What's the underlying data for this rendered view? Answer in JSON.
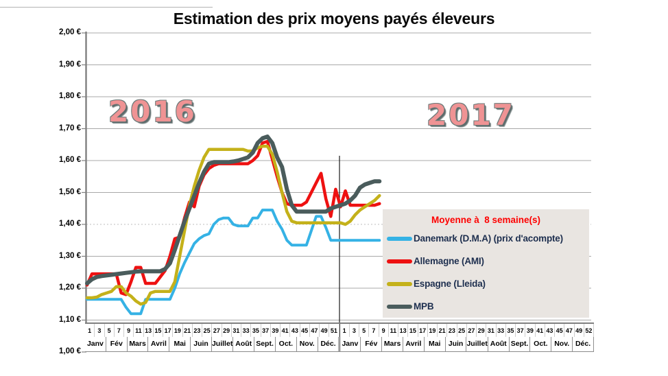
{
  "chart_data": {
    "type": "line",
    "title": "Estimation des prix moyens payés éleveurs",
    "year_labels": [
      "2016",
      "2017"
    ],
    "ylabel": "",
    "xlabel": "",
    "ylim": [
      1.0,
      2.0
    ],
    "grid": true,
    "legend_position": "inside-right",
    "y_axis": {
      "tick_labels": [
        "2,00 €",
        "1,90 €",
        "1,80 €",
        "1,70 €",
        "1,60 €",
        "1,50 €",
        "1,40 €",
        "1,30 €",
        "1,20 €",
        "1,10 €",
        "1,00 €"
      ],
      "dashed_gridline_value": 1.4
    },
    "x_axis": {
      "weeks_per_year": 52,
      "week_tick_labels_2016": [
        "1",
        "3",
        "5",
        "7",
        "9",
        "11",
        "13",
        "15",
        "17",
        "19",
        "21",
        "23",
        "25",
        "27",
        "29",
        "31",
        "33",
        "35",
        "37",
        "39",
        "41",
        "43",
        "45",
        "47",
        "49",
        "51"
      ],
      "week_tick_labels_2017": [
        "1",
        "3",
        "5",
        "7",
        "9",
        "11",
        "13",
        "15",
        "17",
        "19",
        "21",
        "23",
        "25",
        "27",
        "29",
        "31",
        "33",
        "35",
        "37",
        "39",
        "41",
        "43",
        "45",
        "47",
        "49",
        "52"
      ],
      "months": [
        "Janv",
        "Fév",
        "Mars",
        "Avril",
        "Mai",
        "Juin",
        "Juillet",
        "Août",
        "Sept.",
        "Oct.",
        "Nov.",
        "Déc."
      ]
    },
    "legend": {
      "title": "Moyenne à  8 semaine(s)",
      "title_color": "#FE0000"
    },
    "year_separator": {
      "between": [
        "2016",
        "2017"
      ],
      "color": "#1a1a1a"
    },
    "series": [
      {
        "id": "danemark",
        "name": "Danemark (D.M.A) (prix d'acompte)",
        "color": "#35B2E5",
        "width": 4,
        "values_2016": [
          1.165,
          1.165,
          1.165,
          1.165,
          1.165,
          1.165,
          1.165,
          1.165,
          1.14,
          1.12,
          1.12,
          1.12,
          1.165,
          1.165,
          1.165,
          1.165,
          1.165,
          1.165,
          1.2,
          1.245,
          1.28,
          1.31,
          1.34,
          1.355,
          1.365,
          1.37,
          1.4,
          1.415,
          1.42,
          1.42,
          1.4,
          1.395,
          1.395,
          1.395,
          1.42,
          1.42,
          1.445,
          1.445,
          1.445,
          1.41,
          1.385,
          1.35,
          1.335,
          1.335,
          1.335,
          1.335,
          1.38,
          1.425,
          1.425,
          1.39,
          1.35,
          1.35
        ],
        "values_2017": [
          1.35,
          1.35,
          1.35,
          1.35,
          1.35,
          1.35,
          1.35,
          1.35,
          1.35
        ]
      },
      {
        "id": "allemagne",
        "name": "Allemagne (AMI)",
        "color": "#EE1111",
        "width": 4.5,
        "values_2016": [
          1.21,
          1.245,
          1.245,
          1.245,
          1.245,
          1.245,
          1.245,
          1.185,
          1.18,
          1.22,
          1.265,
          1.265,
          1.215,
          1.215,
          1.215,
          1.235,
          1.255,
          1.3,
          1.355,
          1.36,
          1.42,
          1.47,
          1.455,
          1.52,
          1.555,
          1.575,
          1.585,
          1.59,
          1.59,
          1.59,
          1.59,
          1.59,
          1.59,
          1.59,
          1.6,
          1.615,
          1.655,
          1.66,
          1.605,
          1.55,
          1.5,
          1.465,
          1.46,
          1.46,
          1.46,
          1.47,
          1.5,
          1.53,
          1.56,
          1.48,
          1.425,
          1.51
        ],
        "values_2017": [
          1.455,
          1.505,
          1.46,
          1.46,
          1.46,
          1.46,
          1.46,
          1.46,
          1.465
        ]
      },
      {
        "id": "espagne",
        "name": "Espagne (Lleida)",
        "color": "#C4B11A",
        "width": 4.5,
        "values_2016": [
          1.17,
          1.17,
          1.172,
          1.18,
          1.185,
          1.19,
          1.205,
          1.205,
          1.185,
          1.175,
          1.16,
          1.15,
          1.155,
          1.185,
          1.19,
          1.19,
          1.19,
          1.19,
          1.22,
          1.3,
          1.38,
          1.46,
          1.52,
          1.57,
          1.61,
          1.635,
          1.635,
          1.635,
          1.635,
          1.635,
          1.635,
          1.635,
          1.635,
          1.63,
          1.63,
          1.64,
          1.645,
          1.645,
          1.62,
          1.565,
          1.5,
          1.44,
          1.41,
          1.405,
          1.405,
          1.405,
          1.405,
          1.405,
          1.405,
          1.405,
          1.405,
          1.405
        ],
        "values_2017": [
          1.405,
          1.4,
          1.41,
          1.43,
          1.445,
          1.455,
          1.465,
          1.475,
          1.49
        ]
      },
      {
        "id": "mpb",
        "name": "MPB",
        "color": "#4A5C5C",
        "width": 6,
        "values_2016": [
          1.215,
          1.228,
          1.235,
          1.238,
          1.24,
          1.242,
          1.244,
          1.246,
          1.248,
          1.25,
          1.252,
          1.253,
          1.253,
          1.253,
          1.253,
          1.253,
          1.26,
          1.278,
          1.32,
          1.365,
          1.41,
          1.45,
          1.49,
          1.53,
          1.565,
          1.59,
          1.595,
          1.595,
          1.595,
          1.595,
          1.597,
          1.6,
          1.605,
          1.61,
          1.625,
          1.655,
          1.67,
          1.675,
          1.655,
          1.61,
          1.58,
          1.51,
          1.46,
          1.44,
          1.44,
          1.44,
          1.44,
          1.44,
          1.44,
          1.44,
          1.45,
          1.455
        ],
        "values_2017": [
          1.46,
          1.465,
          1.475,
          1.49,
          1.515,
          1.525,
          1.53,
          1.535,
          1.535
        ]
      }
    ]
  }
}
